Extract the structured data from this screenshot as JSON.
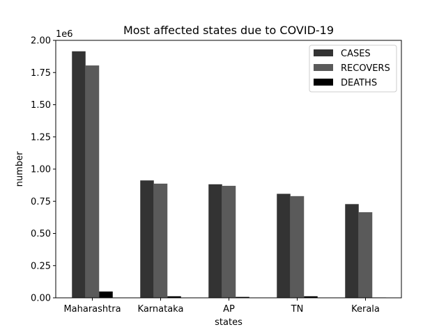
{
  "chart_data": {
    "type": "bar",
    "title": "Most affected states due to COVID-19",
    "xlabel": "states",
    "ylabel": "number",
    "offset_label": "1e6",
    "scale": 1000000,
    "ylim": [
      0,
      2000000
    ],
    "yticks": [
      0,
      250000,
      500000,
      750000,
      1000000,
      1250000,
      1500000,
      1750000,
      2000000
    ],
    "ytick_labels": [
      "0.00",
      "0.25",
      "0.50",
      "0.75",
      "1.00",
      "1.25",
      "1.50",
      "1.75",
      "2.00"
    ],
    "categories": [
      "Maharashtra",
      "Karnataka",
      "AP",
      "TN",
      "Kerala"
    ],
    "legend_position": "top-right",
    "series": [
      {
        "name": "CASES",
        "color": "#333333",
        "values": [
          1915000,
          912000,
          882000,
          808000,
          728000
        ]
      },
      {
        "name": "RECOVERS",
        "color": "#5a5a5a",
        "values": [
          1805000,
          887000,
          870000,
          790000,
          665000
        ]
      },
      {
        "name": "DEATHS",
        "color": "#000000",
        "values": [
          49000,
          12000,
          7000,
          12000,
          3000
        ]
      }
    ]
  }
}
